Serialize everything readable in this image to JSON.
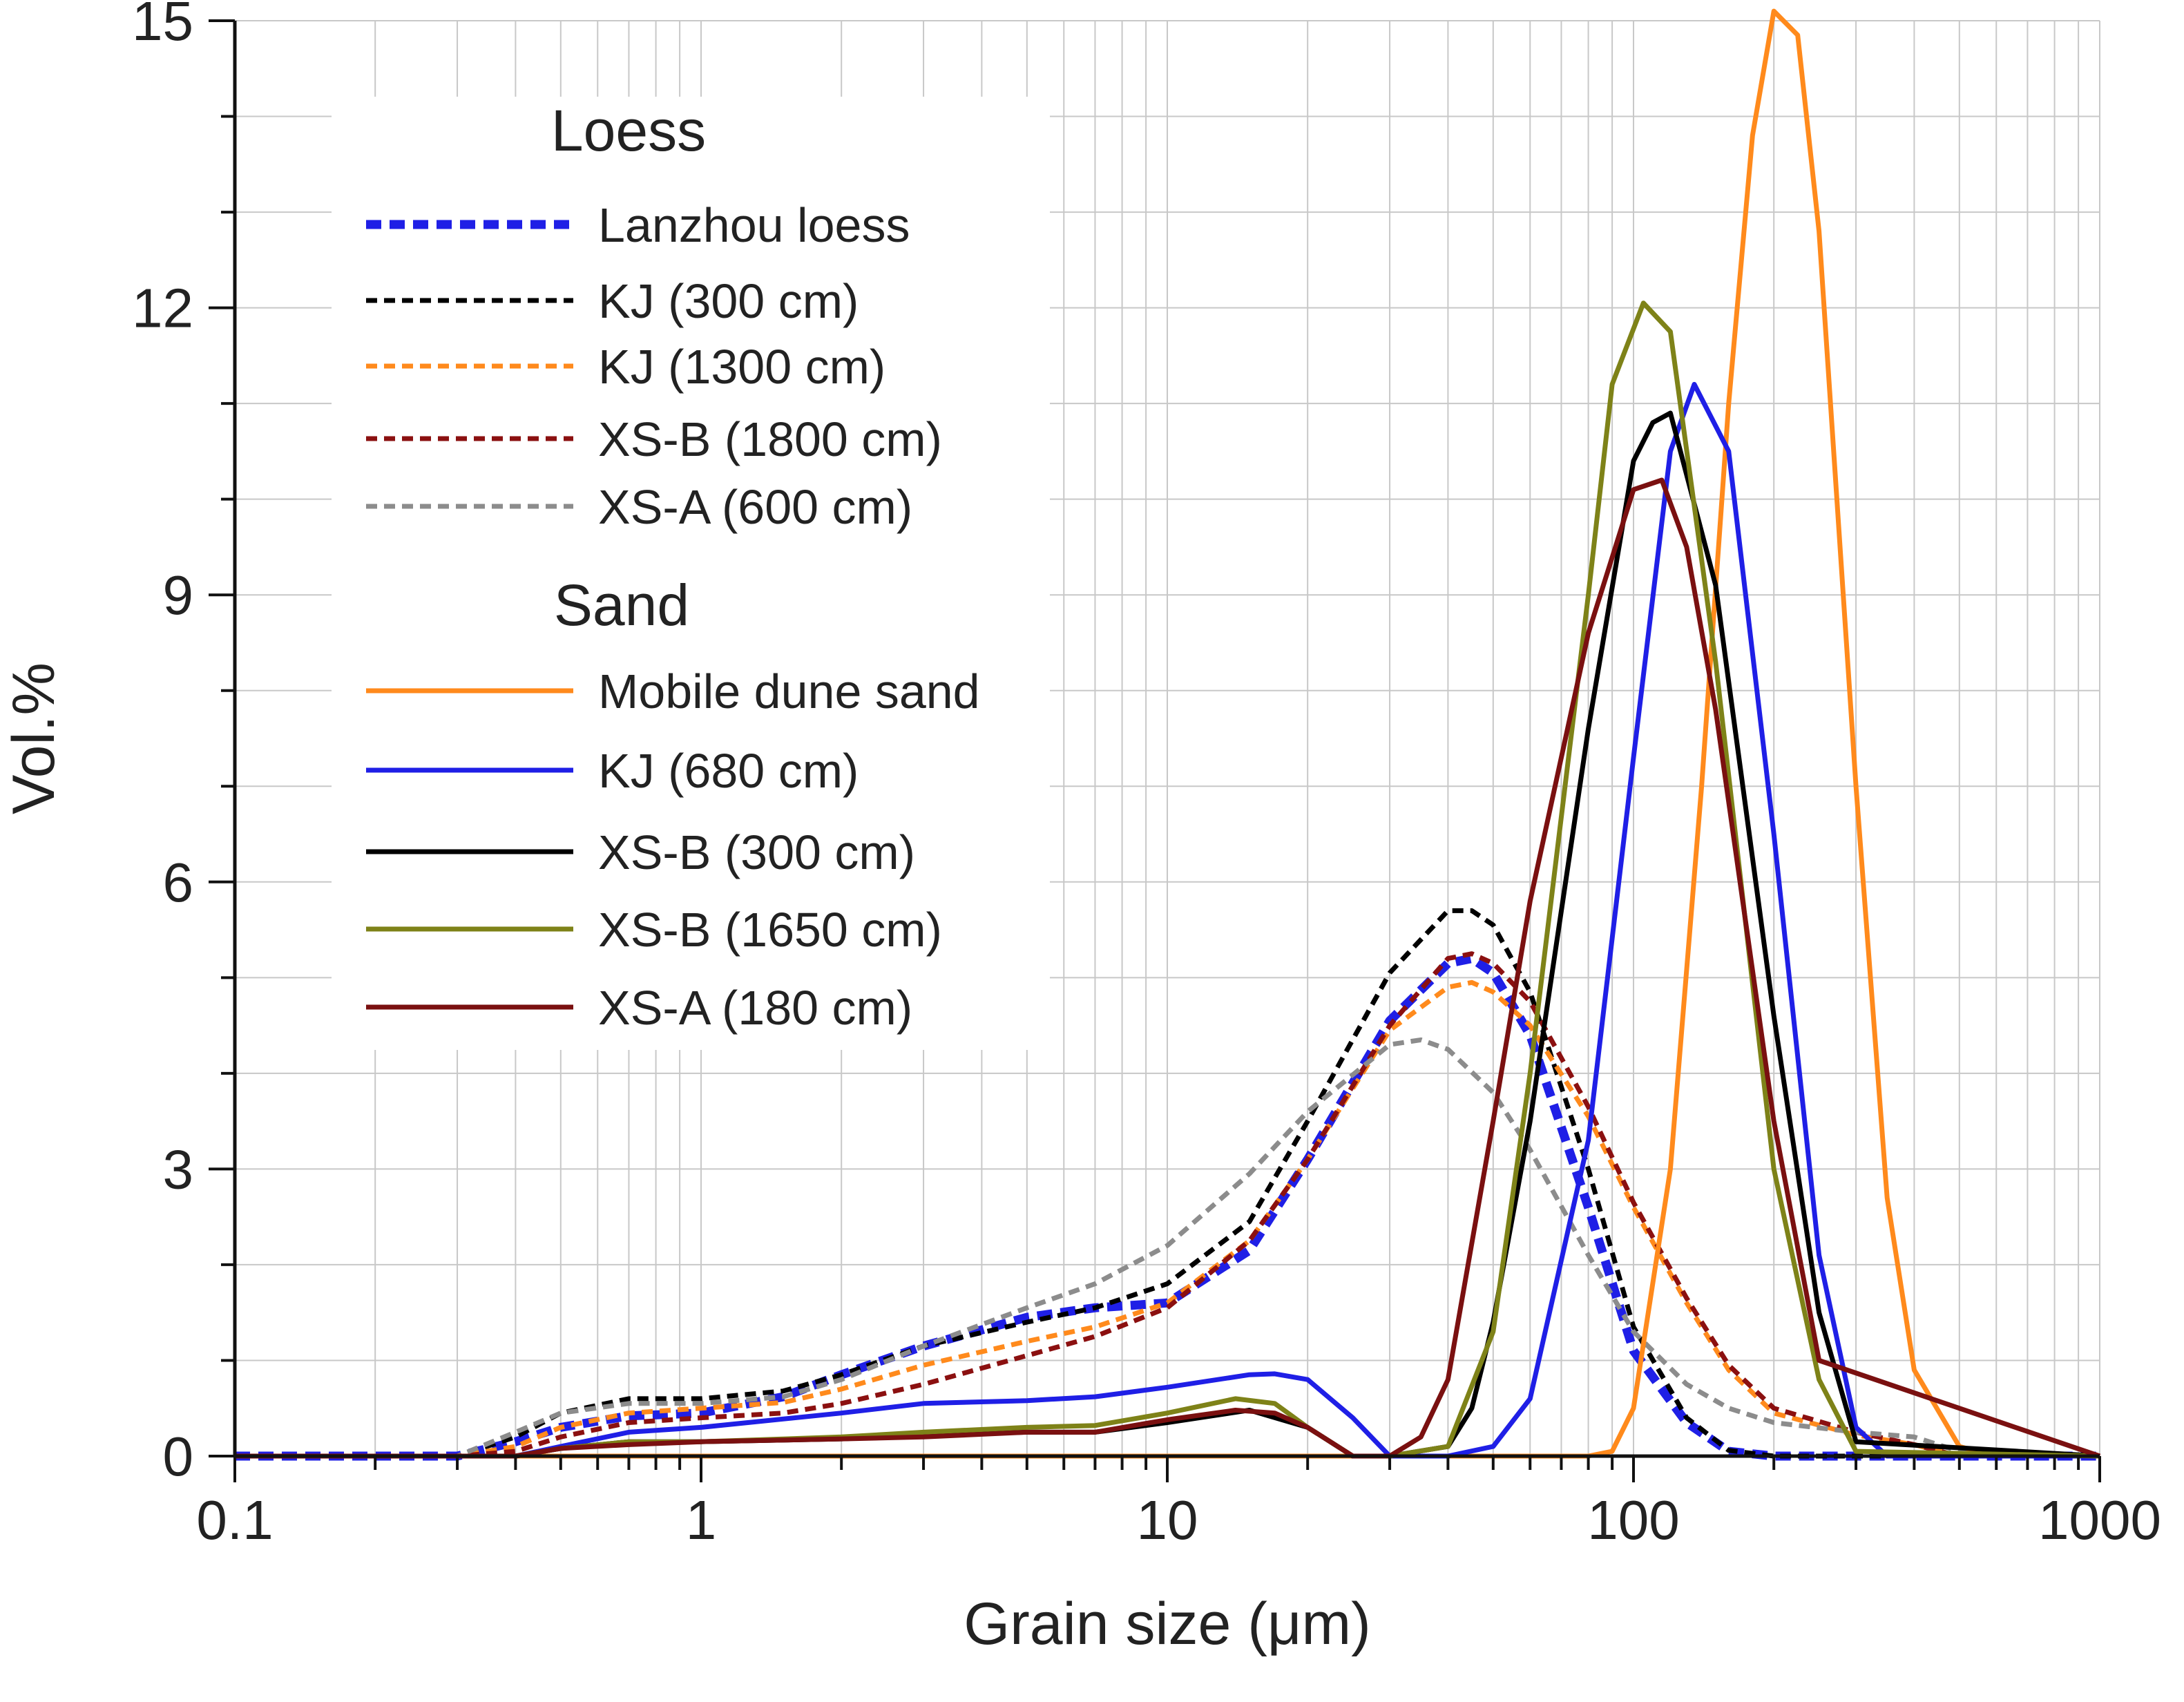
{
  "chart_data": {
    "type": "line",
    "title": "",
    "xlabel": "Grain size (μm)",
    "ylabel": "Vol.%",
    "xscale": "log",
    "xlim": [
      0.1,
      1000
    ],
    "ylim": [
      0,
      15
    ],
    "xticks": [
      0.1,
      1,
      10,
      100,
      1000
    ],
    "xtick_labels": [
      "0.1",
      "1",
      "10",
      "100",
      "1000"
    ],
    "yticks": [
      0,
      3,
      6,
      9,
      12,
      15
    ],
    "ytick_labels": [
      "0",
      "3",
      "6",
      "9",
      "12",
      "15"
    ],
    "grid": true,
    "legend_position": "top-left",
    "legend_groups": [
      {
        "heading": "Loess",
        "series": [
          0,
          1,
          2,
          3,
          4
        ]
      },
      {
        "heading": "Sand",
        "series": [
          5,
          6,
          7,
          8,
          9
        ]
      }
    ],
    "series": [
      {
        "name": "Lanzhou loess",
        "color": "#1f1fe6",
        "style": "dashed-bold",
        "x": [
          0.1,
          0.3,
          0.4,
          0.5,
          0.7,
          1,
          1.5,
          2,
          3,
          5,
          7,
          10,
          15,
          20,
          30,
          40,
          45,
          50,
          60,
          80,
          100,
          130,
          160,
          200,
          500,
          1000
        ],
        "y": [
          0,
          0,
          0.15,
          0.3,
          0.42,
          0.45,
          0.62,
          0.85,
          1.15,
          1.45,
          1.55,
          1.6,
          2.15,
          3.1,
          4.55,
          5.15,
          5.2,
          5.05,
          4.4,
          2.6,
          1.1,
          0.35,
          0.05,
          0,
          0,
          0
        ]
      },
      {
        "name": "KJ (300 cm)",
        "color": "#000000",
        "style": "dashed",
        "x": [
          0.1,
          0.3,
          0.4,
          0.5,
          0.7,
          1,
          1.5,
          2,
          3,
          5,
          7,
          10,
          15,
          20,
          30,
          40,
          45,
          50,
          60,
          80,
          100,
          130,
          160,
          200,
          500,
          1000
        ],
        "y": [
          0,
          0,
          0.2,
          0.45,
          0.6,
          0.6,
          0.68,
          0.85,
          1.15,
          1.4,
          1.55,
          1.8,
          2.45,
          3.5,
          5.05,
          5.7,
          5.7,
          5.55,
          4.85,
          3.0,
          1.35,
          0.4,
          0.06,
          0,
          0,
          0
        ]
      },
      {
        "name": "KJ (1300 cm)",
        "color": "#ff8a1c",
        "style": "dashed",
        "x": [
          0.1,
          0.3,
          0.4,
          0.5,
          0.7,
          1,
          1.5,
          2,
          3,
          5,
          7,
          10,
          15,
          20,
          30,
          40,
          45,
          50,
          60,
          80,
          100,
          130,
          160,
          200,
          300,
          400,
          500,
          1000
        ],
        "y": [
          0,
          0,
          0.1,
          0.3,
          0.45,
          0.5,
          0.56,
          0.7,
          0.95,
          1.2,
          1.35,
          1.6,
          2.25,
          3.1,
          4.45,
          4.9,
          4.95,
          4.85,
          4.5,
          3.55,
          2.6,
          1.6,
          0.9,
          0.45,
          0.22,
          0.12,
          0,
          0
        ]
      },
      {
        "name": "XS-B (1800 cm)",
        "color": "#8b1010",
        "style": "dashed",
        "x": [
          0.1,
          0.3,
          0.4,
          0.5,
          0.7,
          1,
          1.5,
          2,
          3,
          5,
          7,
          10,
          15,
          20,
          30,
          40,
          45,
          50,
          60,
          80,
          100,
          130,
          160,
          200,
          300,
          400,
          500,
          1000
        ],
        "y": [
          0,
          0,
          0.05,
          0.2,
          0.35,
          0.4,
          0.45,
          0.55,
          0.75,
          1.05,
          1.25,
          1.55,
          2.25,
          3.1,
          4.5,
          5.2,
          5.25,
          5.15,
          4.75,
          3.65,
          2.65,
          1.65,
          0.95,
          0.5,
          0.25,
          0.12,
          0,
          0
        ]
      },
      {
        "name": "XS-A (600 cm)",
        "color": "#8c8c8c",
        "style": "dashed",
        "x": [
          0.1,
          0.3,
          0.4,
          0.5,
          0.7,
          1,
          1.5,
          2,
          3,
          5,
          7,
          10,
          15,
          20,
          30,
          35,
          40,
          50,
          60,
          80,
          100,
          130,
          160,
          200,
          300,
          400,
          500,
          1000
        ],
        "y": [
          0,
          0,
          0.25,
          0.45,
          0.55,
          0.55,
          0.62,
          0.8,
          1.15,
          1.55,
          1.8,
          2.2,
          2.95,
          3.6,
          4.3,
          4.35,
          4.25,
          3.8,
          3.2,
          2.1,
          1.3,
          0.75,
          0.5,
          0.35,
          0.25,
          0.2,
          0.05,
          0
        ]
      },
      {
        "name": "Mobile dune sand",
        "color": "#ff8a1c",
        "style": "solid",
        "x": [
          0.1,
          80,
          90,
          100,
          120,
          140,
          160,
          180,
          200,
          225,
          250,
          300,
          350,
          400,
          500,
          600,
          1000
        ],
        "y": [
          0,
          0,
          0.05,
          0.5,
          3.0,
          7.0,
          11.0,
          13.8,
          15.1,
          14.85,
          12.8,
          7.0,
          2.7,
          0.9,
          0.1,
          0,
          0
        ]
      },
      {
        "name": "KJ (680 cm)",
        "color": "#1f1fe6",
        "style": "solid",
        "x": [
          0.1,
          0.4,
          0.5,
          0.7,
          1,
          2,
          3,
          5,
          7,
          10,
          15,
          17,
          20,
          25,
          30,
          40,
          50,
          60,
          80,
          100,
          120,
          135,
          160,
          200,
          250,
          300,
          350,
          1000
        ],
        "y": [
          0,
          0,
          0.1,
          0.25,
          0.3,
          0.45,
          0.55,
          0.58,
          0.62,
          0.72,
          0.85,
          0.86,
          0.8,
          0.4,
          0,
          0,
          0.1,
          0.6,
          3.3,
          7.3,
          10.5,
          11.2,
          10.5,
          6.5,
          2.1,
          0.3,
          0,
          0
        ]
      },
      {
        "name": "XS-B (300 cm)",
        "color": "#000000",
        "style": "solid",
        "x": [
          0.1,
          0.4,
          0.5,
          0.7,
          1,
          2,
          3,
          5,
          7,
          10,
          15,
          20,
          25,
          30,
          40,
          45,
          50,
          60,
          80,
          100,
          110,
          120,
          150,
          200,
          250,
          300,
          1000
        ],
        "y": [
          0,
          0,
          0.08,
          0.15,
          0.15,
          0.18,
          0.22,
          0.25,
          0.25,
          0.35,
          0.48,
          0.3,
          0,
          0,
          0.1,
          0.5,
          1.4,
          3.5,
          7.6,
          10.4,
          10.8,
          10.9,
          9.1,
          4.6,
          1.5,
          0.15,
          0
        ]
      },
      {
        "name": "XS-B (1650 cm)",
        "color": "#7e8218",
        "style": "solid",
        "x": [
          0.1,
          0.4,
          0.5,
          0.7,
          1,
          2,
          3,
          5,
          7,
          10,
          14,
          17,
          20,
          25,
          30,
          40,
          50,
          60,
          80,
          90,
          105,
          120,
          150,
          200,
          250,
          300,
          1000
        ],
        "y": [
          0,
          0,
          0.08,
          0.15,
          0.15,
          0.2,
          0.25,
          0.3,
          0.32,
          0.45,
          0.6,
          0.55,
          0.3,
          0,
          0,
          0.1,
          1.3,
          4.0,
          9.0,
          11.2,
          12.05,
          11.75,
          8.3,
          3.0,
          0.8,
          0.05,
          0
        ]
      },
      {
        "name": "XS-A (180 cm)",
        "color": "#7a1010",
        "style": "solid",
        "x": [
          0.1,
          0.4,
          0.5,
          0.7,
          1,
          2,
          3,
          5,
          7,
          10,
          14,
          17,
          20,
          25,
          30,
          35,
          40,
          50,
          60,
          80,
          100,
          115,
          130,
          150,
          200,
          250,
          1000
        ],
        "y": [
          0,
          0,
          0.08,
          0.12,
          0.15,
          0.18,
          0.2,
          0.25,
          0.25,
          0.38,
          0.48,
          0.45,
          0.3,
          0,
          0,
          0.2,
          0.8,
          3.5,
          5.8,
          8.6,
          10.1,
          10.2,
          9.5,
          7.8,
          3.5,
          1.0,
          0
        ]
      }
    ]
  }
}
